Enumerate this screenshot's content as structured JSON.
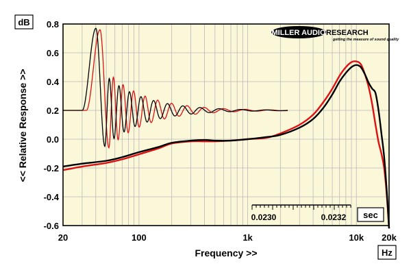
{
  "chart_data": {
    "type": "line",
    "title": "",
    "xlabel": "Frequency >>",
    "ylabel": "<< Relative Response >>",
    "x_scale": "log",
    "xlim": [
      20,
      20000
    ],
    "ylim": [
      -0.6,
      0.8
    ],
    "y_unit": "dB",
    "x_unit": "Hz",
    "grid": true,
    "x_ticks": [
      "20",
      "100",
      "1k",
      "10k",
      "20k"
    ],
    "y_ticks": [
      "0.8",
      "0.6",
      "0.4",
      "0.2",
      "0.0",
      "-0.2",
      "-0.4",
      "-0.6"
    ],
    "logo": {
      "main": "MILLER AUDIO",
      "side": "RESEARCH",
      "tagline": "getting the measure of sound quality"
    },
    "colors": {
      "background": "#fbf7d9",
      "series_a": "#000000",
      "series_b": "#dd1111",
      "grid": "#b9b9b9"
    },
    "series": [
      {
        "x": [
          20,
          30,
          50,
          70,
          100,
          150,
          200,
          300,
          400,
          500,
          700,
          1000,
          1500,
          2000,
          3000,
          4000,
          5000,
          6000,
          7000,
          8000,
          9000,
          10000,
          11000,
          12000,
          13000,
          14000,
          15000,
          16000,
          17000,
          18000,
          19000,
          20000
        ],
        "y": [
          -0.19,
          -0.17,
          -0.15,
          -0.125,
          -0.09,
          -0.055,
          -0.025,
          -0.01,
          -0.005,
          -0.01,
          -0.01,
          0.0,
          0.015,
          0.03,
          0.08,
          0.14,
          0.22,
          0.31,
          0.4,
          0.46,
          0.5,
          0.515,
          0.5,
          0.45,
          0.39,
          0.35,
          0.32,
          0.2,
          0.04,
          -0.12,
          -0.35,
          -0.62
        ]
      },
      {
        "x": [
          20,
          30,
          50,
          70,
          100,
          150,
          200,
          300,
          400,
          500,
          700,
          1000,
          1500,
          2000,
          3000,
          4000,
          5000,
          6000,
          7000,
          8000,
          9000,
          10000,
          11000,
          12000,
          13000,
          14000,
          15000,
          16000,
          17000,
          18000,
          19000,
          20000
        ],
        "y": [
          -0.215,
          -0.19,
          -0.165,
          -0.14,
          -0.105,
          -0.065,
          -0.03,
          -0.015,
          -0.015,
          -0.015,
          -0.01,
          0.0,
          0.01,
          0.04,
          0.1,
          0.17,
          0.26,
          0.35,
          0.44,
          0.5,
          0.535,
          0.54,
          0.52,
          0.45,
          0.36,
          0.24,
          0.1,
          -0.02,
          -0.1,
          -0.2,
          -0.38,
          -0.62
        ]
      }
    ],
    "inset": {
      "type": "impulse",
      "x_unit": "sec",
      "x_ticks": [
        "0.0230",
        "0.0232"
      ],
      "baseline": 0.2,
      "series": [
        {
          "peak": 0.77,
          "trough": -0.05,
          "secondary_peak": 0.36
        },
        {
          "peak": 0.76,
          "trough": -0.06,
          "secondary_peak": 0.35
        }
      ]
    }
  }
}
